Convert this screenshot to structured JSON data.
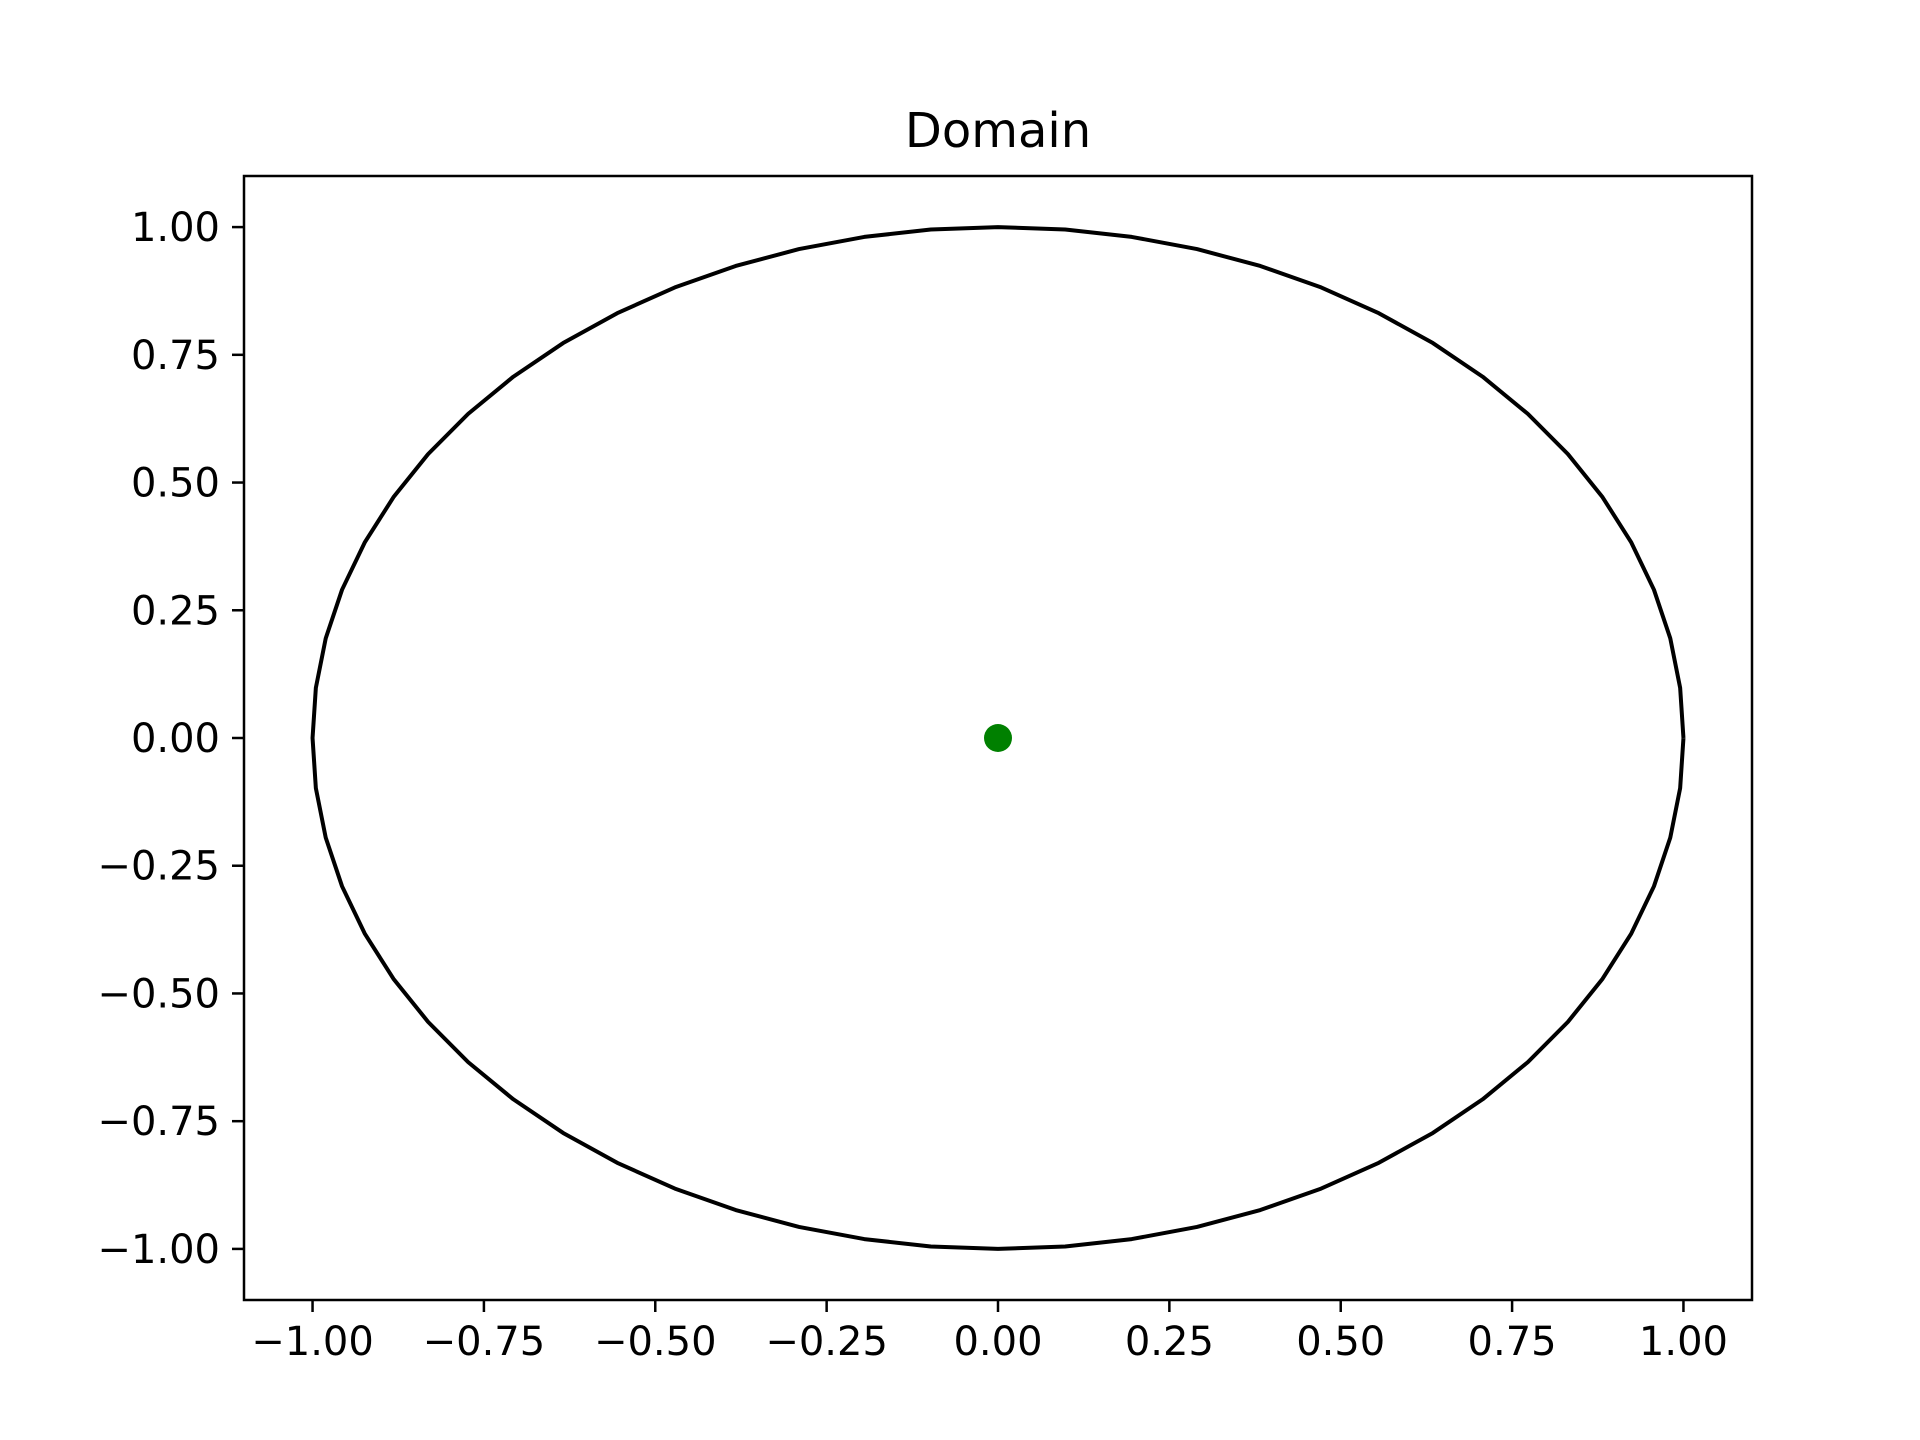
{
  "chart_data": {
    "type": "line",
    "title": "Domain",
    "xlabel": "",
    "ylabel": "",
    "xlim": [
      -1.1,
      1.1
    ],
    "ylim": [
      -1.1,
      1.1
    ],
    "grid": false,
    "x_ticks": [
      -1.0,
      -0.75,
      -0.5,
      -0.25,
      0.0,
      0.25,
      0.5,
      0.75,
      1.0
    ],
    "x_tick_labels": [
      "−1.00",
      "−0.75",
      "−0.50",
      "−0.25",
      "0.00",
      "0.25",
      "0.50",
      "0.75",
      "1.00"
    ],
    "y_ticks": [
      1.0,
      0.75,
      0.5,
      0.25,
      0.0,
      -0.25,
      -0.5,
      -0.75,
      -1.0
    ],
    "y_tick_labels": [
      "1.00",
      "0.75",
      "0.50",
      "0.25",
      "0.00",
      "−0.25",
      "−0.50",
      "−0.75",
      "−1.00"
    ],
    "series": [
      {
        "kind": "line",
        "shape": "unit circle",
        "center": [
          0,
          0
        ],
        "radius": 1,
        "segments": 64,
        "color": "#000000"
      },
      {
        "kind": "scatter",
        "x": [
          0.0
        ],
        "y": [
          0.0
        ],
        "color": "#008000"
      }
    ]
  }
}
